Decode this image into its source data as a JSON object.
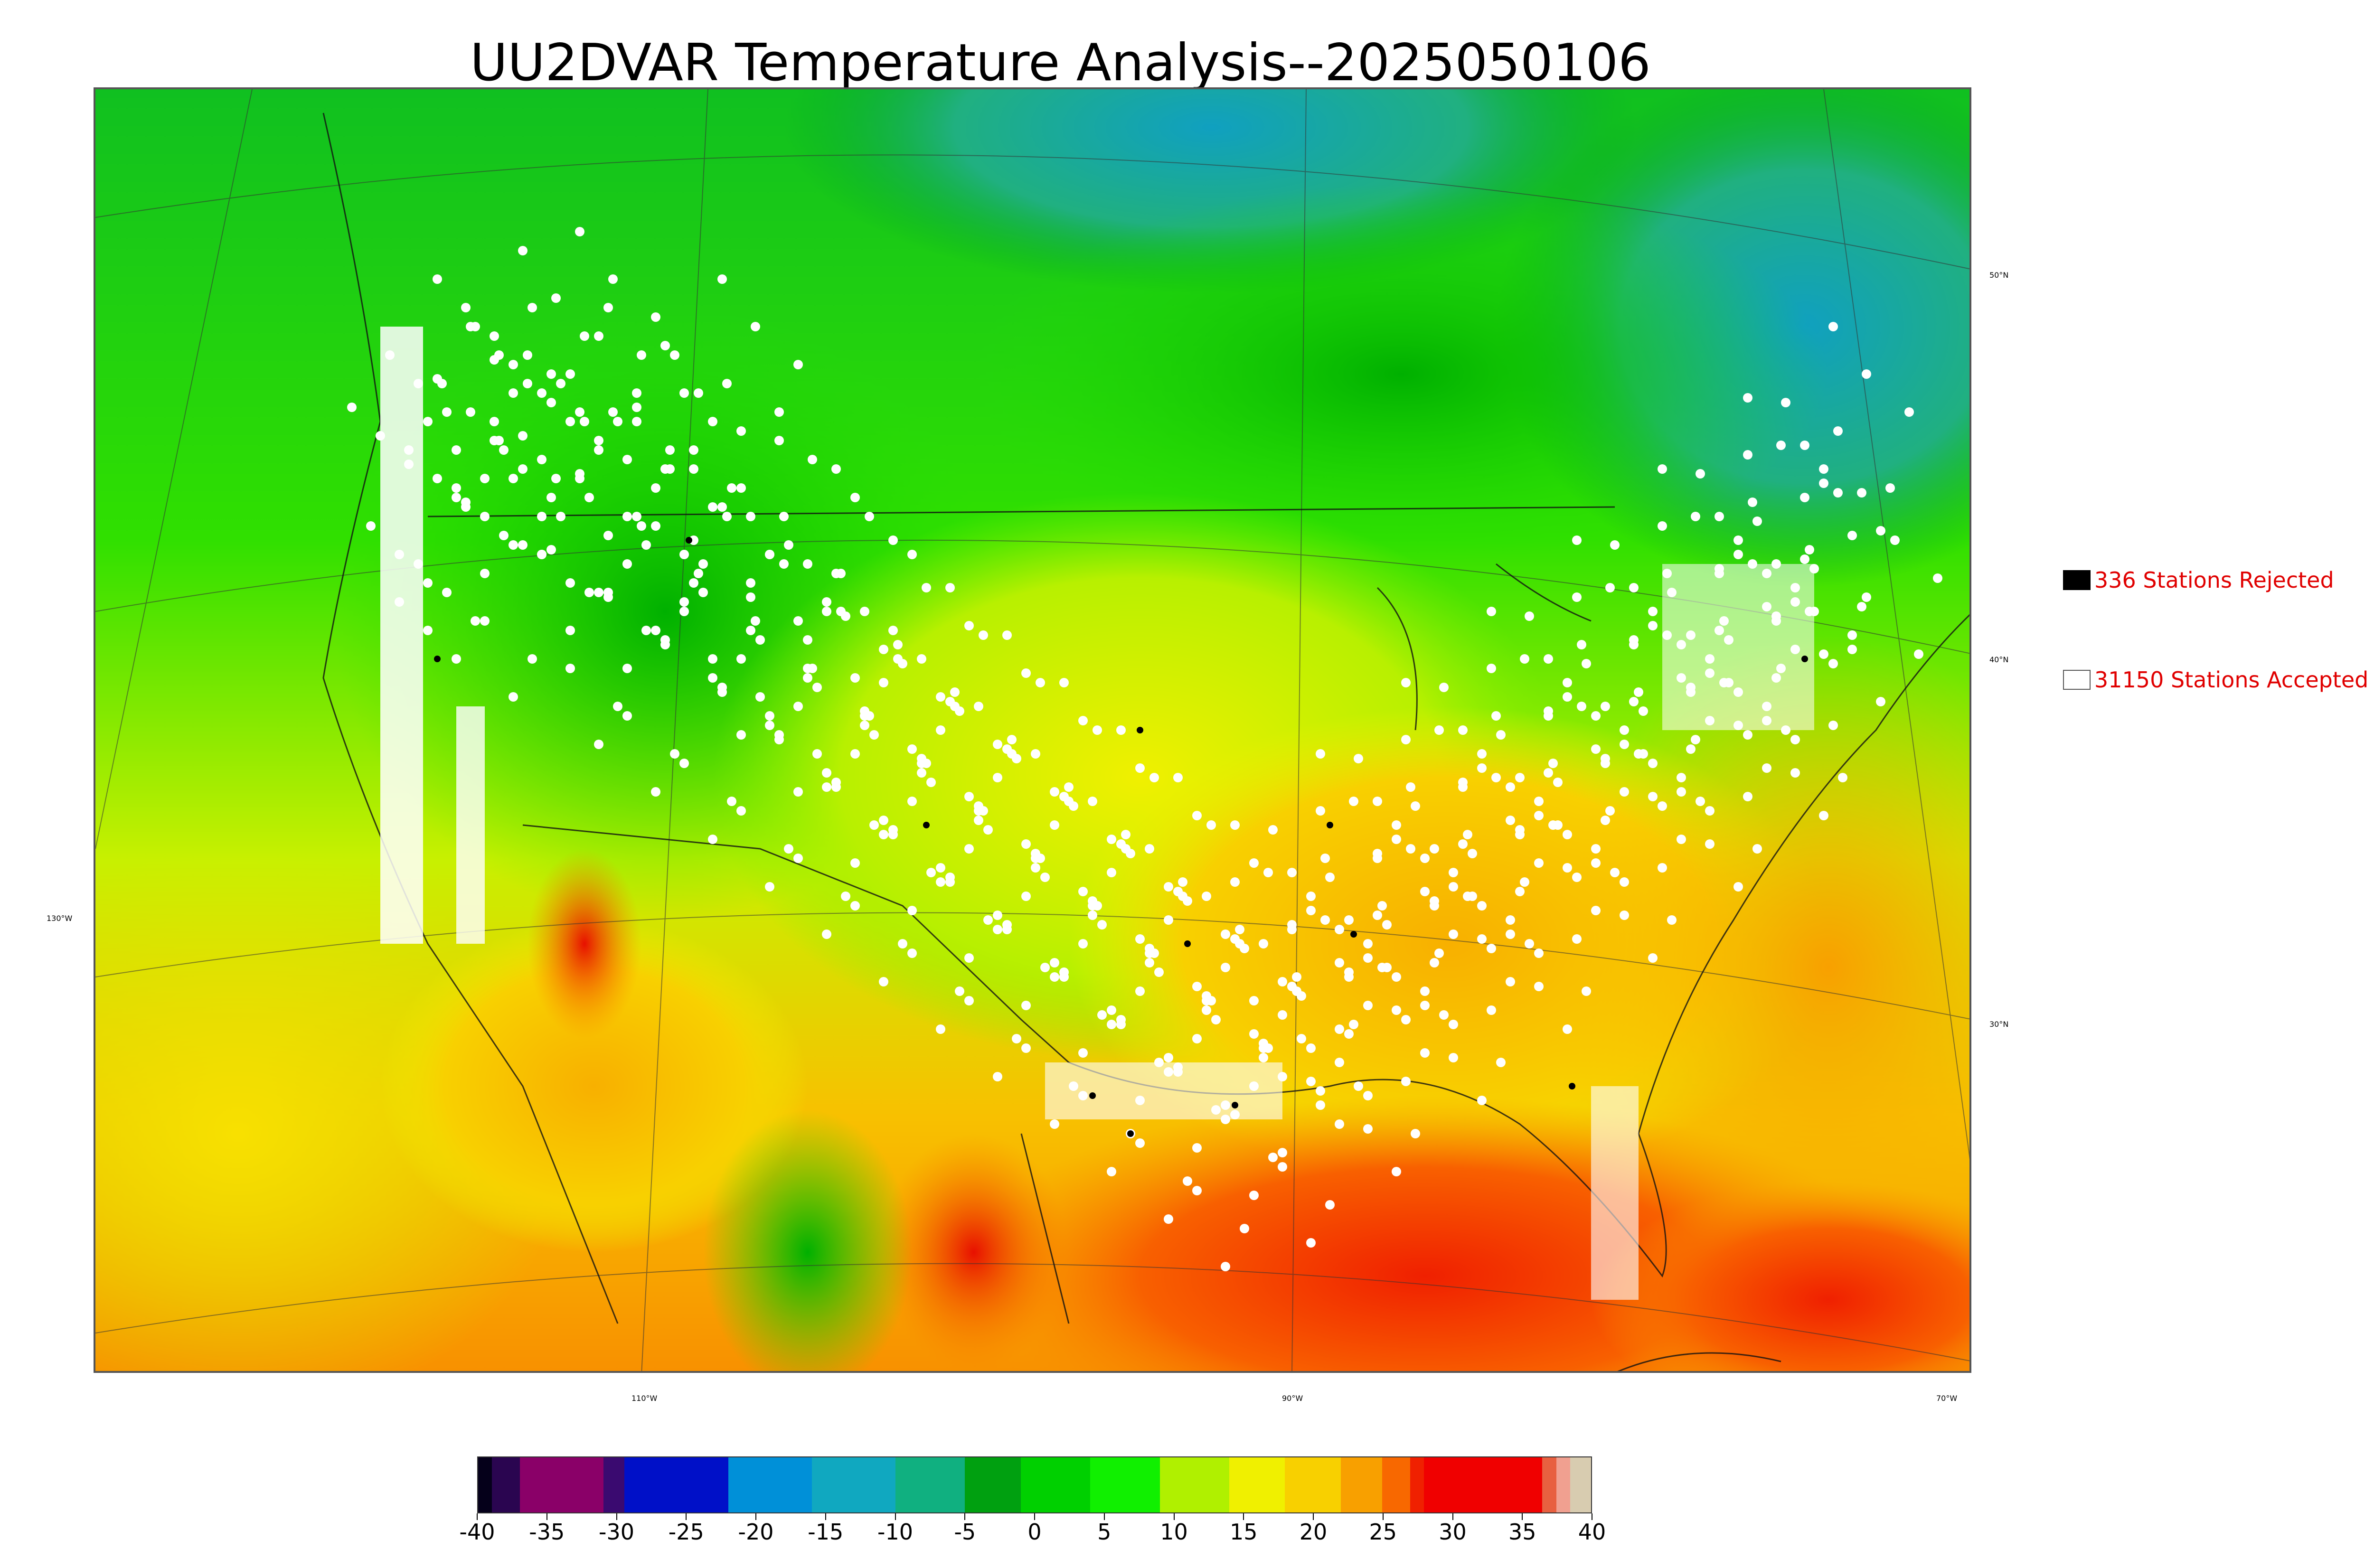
{
  "title": "UU2DVAR Temperature Analysis--2025050106",
  "latitude_labels": [
    "50°N",
    "40°N",
    "30°N"
  ],
  "west_label": "130°W",
  "longitude_labels": [
    "110°W",
    "90°W",
    "70°W"
  ],
  "legend": {
    "rejected": {
      "label": "336 Stations Rejected",
      "color": "#000000"
    },
    "accepted": {
      "label": "31150 Stations Accepted",
      "color": "#ffffff"
    }
  },
  "colorbar": {
    "ticks": [
      "-40",
      "-35",
      "-30",
      "-25",
      "-20",
      "-15",
      "-10",
      "-5",
      "0",
      "5",
      "10",
      "15",
      "20",
      "25",
      "30",
      "35",
      "40"
    ],
    "range": [
      -40,
      40
    ],
    "colors": [
      {
        "from": -40,
        "to": -39,
        "color": "#05001a"
      },
      {
        "from": -39,
        "to": -37,
        "color": "#2a0550"
      },
      {
        "from": -37,
        "to": -31,
        "color": "#8a0068"
      },
      {
        "from": -31,
        "to": -29.5,
        "color": "#3a0a70"
      },
      {
        "from": -29.5,
        "to": -22,
        "color": "#0010c8"
      },
      {
        "from": -22,
        "to": -16,
        "color": "#0090d8"
      },
      {
        "from": -16,
        "to": -10,
        "color": "#10a8c0"
      },
      {
        "from": -10,
        "to": -5,
        "color": "#10b080"
      },
      {
        "from": -5,
        "to": -1,
        "color": "#00a010"
      },
      {
        "from": -1,
        "to": 4,
        "color": "#00d000"
      },
      {
        "from": 4,
        "to": 9,
        "color": "#10f000"
      },
      {
        "from": 9,
        "to": 14,
        "color": "#b0f000"
      },
      {
        "from": 14,
        "to": 18,
        "color": "#f0f000"
      },
      {
        "from": 18,
        "to": 22,
        "color": "#f8d000"
      },
      {
        "from": 22,
        "to": 25,
        "color": "#f8a000"
      },
      {
        "from": 25,
        "to": 27,
        "color": "#f86800"
      },
      {
        "from": 27,
        "to": 28,
        "color": "#f02000"
      },
      {
        "from": 28,
        "to": 36.5,
        "color": "#f00000"
      },
      {
        "from": 36.5,
        "to": 37.5,
        "color": "#e86040"
      },
      {
        "from": 37.5,
        "to": 38.5,
        "color": "#f0a090"
      },
      {
        "from": 38.5,
        "to": 40,
        "color": "#d8ccb0"
      }
    ]
  }
}
